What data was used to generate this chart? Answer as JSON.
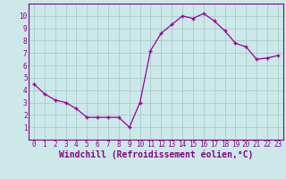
{
  "hours": [
    0,
    1,
    2,
    3,
    4,
    5,
    6,
    7,
    8,
    9,
    10,
    11,
    12,
    13,
    14,
    15,
    16,
    17,
    18,
    19,
    20,
    21,
    22,
    23
  ],
  "values": [
    4.5,
    3.7,
    3.2,
    3.0,
    2.5,
    1.8,
    1.8,
    1.8,
    1.8,
    1.0,
    3.0,
    7.2,
    8.6,
    9.3,
    10.0,
    9.8,
    10.2,
    9.6,
    8.8,
    7.8,
    7.5,
    6.5,
    6.6,
    6.8
  ],
  "xlabel": "Windchill (Refroidissement éolien,°C)",
  "ylim": [
    0,
    11
  ],
  "xlim": [
    -0.5,
    23.5
  ],
  "yticks": [
    1,
    2,
    3,
    4,
    5,
    6,
    7,
    8,
    9,
    10
  ],
  "xticks": [
    0,
    1,
    2,
    3,
    4,
    5,
    6,
    7,
    8,
    9,
    10,
    11,
    12,
    13,
    14,
    15,
    16,
    17,
    18,
    19,
    20,
    21,
    22,
    23
  ],
  "line_color": "#990099",
  "marker": "+",
  "bg_color": "#cce8e8",
  "grid_color": "#aacccc",
  "font_color": "#880088",
  "tick_fontsize": 5.5,
  "xlabel_fontsize": 7.0
}
